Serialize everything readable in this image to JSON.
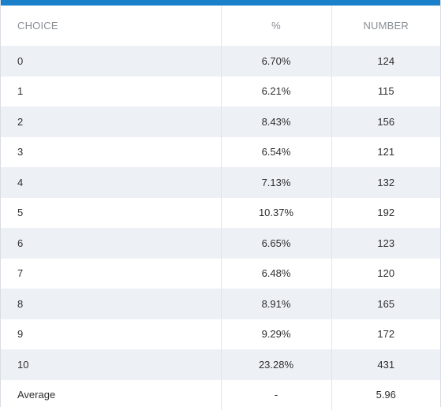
{
  "table": {
    "headers": {
      "choice": "CHOICE",
      "percent": "%",
      "number": "NUMBER"
    },
    "rows": [
      {
        "choice": "0",
        "percent": "6.70%",
        "number": "124"
      },
      {
        "choice": "1",
        "percent": "6.21%",
        "number": "115"
      },
      {
        "choice": "2",
        "percent": "8.43%",
        "number": "156"
      },
      {
        "choice": "3",
        "percent": "6.54%",
        "number": "121"
      },
      {
        "choice": "4",
        "percent": "7.13%",
        "number": "132"
      },
      {
        "choice": "5",
        "percent": "10.37%",
        "number": "192"
      },
      {
        "choice": "6",
        "percent": "6.65%",
        "number": "123"
      },
      {
        "choice": "7",
        "percent": "6.48%",
        "number": "120"
      },
      {
        "choice": "8",
        "percent": "8.91%",
        "number": "165"
      },
      {
        "choice": "9",
        "percent": "9.29%",
        "number": "172"
      },
      {
        "choice": "10",
        "percent": "23.28%",
        "number": "431"
      },
      {
        "choice": "Average",
        "percent": "-",
        "number": "5.96"
      }
    ]
  },
  "colors": {
    "accent_bar": "#1a80c9",
    "stripe": "#edf1f6",
    "header_text": "#8a8f96"
  }
}
